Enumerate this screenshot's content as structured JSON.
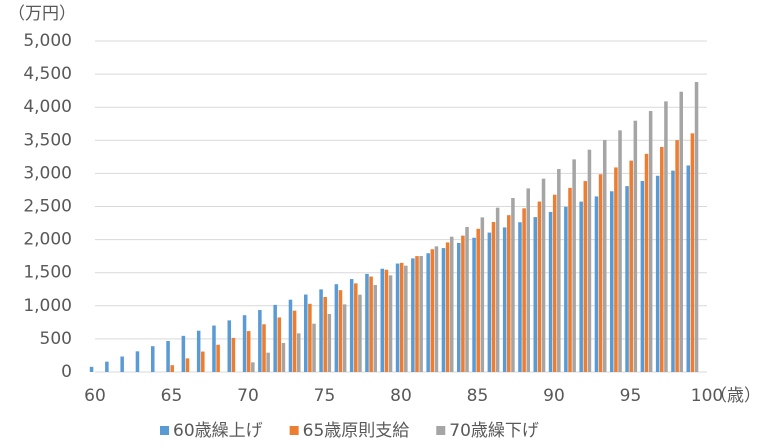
{
  "chart_data": {
    "type": "bar",
    "ylabel": "（万円）",
    "xlabel": "（歳）",
    "x": [
      60,
      61,
      62,
      63,
      64,
      65,
      66,
      67,
      68,
      69,
      70,
      71,
      72,
      73,
      74,
      75,
      76,
      77,
      78,
      79,
      80,
      81,
      82,
      83,
      84,
      85,
      86,
      87,
      88,
      89,
      90,
      91,
      92,
      93,
      94,
      95,
      96,
      97,
      98,
      99
    ],
    "series": [
      {
        "name": "60歳繰上げ",
        "color": "#5b9bd5",
        "values": [
          78,
          156,
          234,
          312,
          390,
          468,
          546,
          624,
          702,
          780,
          858,
          936,
          1014,
          1092,
          1170,
          1248,
          1326,
          1404,
          1482,
          1560,
          1638,
          1716,
          1794,
          1872,
          1950,
          2028,
          2106,
          2184,
          2262,
          2340,
          2418,
          2496,
          2574,
          2652,
          2730,
          2808,
          2886,
          2964,
          3042,
          3120
        ]
      },
      {
        "name": "65歳原則支給",
        "color": "#ed7d31",
        "values": [
          0,
          0,
          0,
          0,
          0,
          103,
          206,
          309,
          412,
          515,
          618,
          721,
          824,
          927,
          1030,
          1133,
          1236,
          1339,
          1442,
          1545,
          1648,
          1751,
          1854,
          1957,
          2060,
          2163,
          2266,
          2369,
          2472,
          2575,
          2678,
          2781,
          2884,
          2987,
          3090,
          3193,
          3296,
          3399,
          3502,
          3605
        ]
      },
      {
        "name": "70歳繰下げ",
        "color": "#a5a5a5",
        "values": [
          0,
          0,
          0,
          0,
          0,
          0,
          0,
          0,
          0,
          0,
          146,
          292,
          438,
          584,
          730,
          876,
          1022,
          1168,
          1314,
          1460,
          1606,
          1752,
          1898,
          2044,
          2190,
          2336,
          2482,
          2628,
          2774,
          2920,
          3066,
          3212,
          3358,
          3504,
          3650,
          3796,
          3942,
          4088,
          4234,
          4380
        ]
      }
    ],
    "xlim": [
      60,
      100
    ],
    "xticks": [
      60,
      65,
      70,
      75,
      80,
      85,
      90,
      95,
      100
    ],
    "ylim": [
      0,
      5000
    ],
    "yticks": [
      0,
      500,
      {
        "value": 1000,
        "label": "1,000"
      },
      {
        "value": 1500,
        "label": "1,500"
      },
      {
        "value": 2000,
        "label": "2,000"
      },
      {
        "value": 2500,
        "label": "2,500"
      },
      {
        "value": 3000,
        "label": "3,000"
      },
      {
        "value": 3500,
        "label": "3,500"
      },
      {
        "value": 4000,
        "label": "4,000"
      },
      {
        "value": 4500,
        "label": "4,500"
      },
      {
        "value": 5000,
        "label": "5,000"
      }
    ],
    "grid": true,
    "legend": "bottom"
  }
}
